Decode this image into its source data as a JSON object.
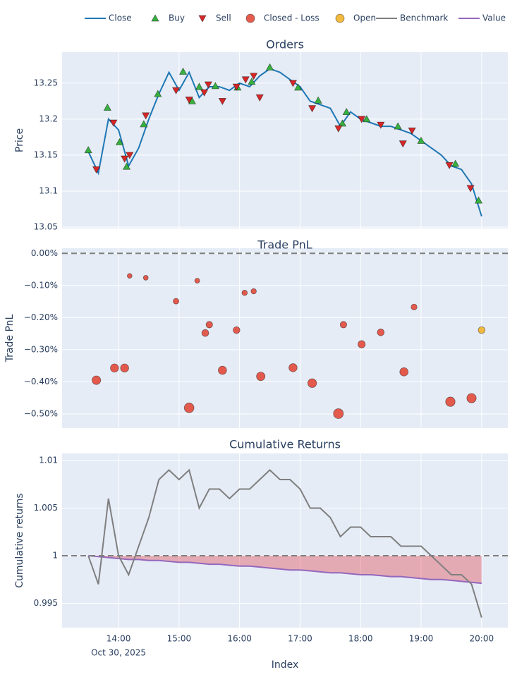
{
  "chart_data": [
    {
      "type": "line",
      "title": "Orders",
      "y_label": "Price",
      "x": [
        "2025-10-30 13:30",
        "2025-10-30 13:40",
        "2025-10-30 13:50",
        "2025-10-30 14:00",
        "2025-10-30 14:10",
        "2025-10-30 14:20",
        "2025-10-30 14:30",
        "2025-10-30 14:40",
        "2025-10-30 14:50",
        "2025-10-30 15:00",
        "2025-10-30 15:10",
        "2025-10-30 15:20",
        "2025-10-30 15:30",
        "2025-10-30 15:40",
        "2025-10-30 15:50",
        "2025-10-30 16:00",
        "2025-10-30 16:10",
        "2025-10-30 16:20",
        "2025-10-30 16:30",
        "2025-10-30 16:40",
        "2025-10-30 16:50",
        "2025-10-30 17:00",
        "2025-10-30 17:10",
        "2025-10-30 17:20",
        "2025-10-30 17:30",
        "2025-10-30 17:40",
        "2025-10-30 17:50",
        "2025-10-30 18:00",
        "2025-10-30 18:10",
        "2025-10-30 18:20",
        "2025-10-30 18:30",
        "2025-10-30 18:40",
        "2025-10-30 18:50",
        "2025-10-30 19:00",
        "2025-10-30 19:10",
        "2025-10-30 19:20",
        "2025-10-30 19:30",
        "2025-10-30 19:40",
        "2025-10-30 19:50",
        "2025-10-30 20:00"
      ],
      "series": [
        {
          "name": "Close",
          "color": "#1f77b4",
          "values": [
            13.155,
            13.125,
            13.2,
            13.185,
            13.135,
            13.16,
            13.2,
            13.235,
            13.265,
            13.24,
            13.265,
            13.23,
            13.245,
            13.245,
            13.24,
            13.25,
            13.245,
            13.26,
            13.27,
            13.265,
            13.255,
            13.245,
            13.225,
            13.22,
            13.215,
            13.19,
            13.21,
            13.2,
            13.195,
            13.19,
            13.19,
            13.185,
            13.18,
            13.17,
            13.16,
            13.15,
            13.135,
            13.13,
            13.11,
            13.065
          ]
        },
        {
          "name": "Buy",
          "color": "#37b13f",
          "marker": "triangle-up",
          "x": [
            "2025-10-30 13:30",
            "2025-10-30 13:49",
            "2025-10-30 14:01",
            "2025-10-30 14:08",
            "2025-10-30 14:25",
            "2025-10-30 14:39",
            "2025-10-30 15:04",
            "2025-10-30 15:13",
            "2025-10-30 15:20",
            "2025-10-30 15:36",
            "2025-10-30 15:58",
            "2025-10-30 16:12",
            "2025-10-30 16:30",
            "2025-10-30 16:58",
            "2025-10-30 17:18",
            "2025-10-30 17:42",
            "2025-10-30 17:46",
            "2025-10-30 18:06",
            "2025-10-30 18:37",
            "2025-10-30 19:00",
            "2025-10-30 19:34",
            "2025-10-30 19:57"
          ],
          "values": [
            13.157,
            13.216,
            13.168,
            13.134,
            13.193,
            13.235,
            13.266,
            13.225,
            13.245,
            13.246,
            13.244,
            13.252,
            13.272,
            13.244,
            13.226,
            13.194,
            13.21,
            13.2,
            13.19,
            13.17,
            13.138,
            13.087
          ]
        },
        {
          "name": "Sell",
          "color": "#d62728",
          "marker": "triangle-down",
          "x": [
            "2025-10-30 13:38",
            "2025-10-30 13:55",
            "2025-10-30 14:06",
            "2025-10-30 14:11",
            "2025-10-30 14:27",
            "2025-10-30 14:57",
            "2025-10-30 15:10",
            "2025-10-30 15:25",
            "2025-10-30 15:29",
            "2025-10-30 15:43",
            "2025-10-30 15:57",
            "2025-10-30 16:06",
            "2025-10-30 16:14",
            "2025-10-30 16:20",
            "2025-10-30 16:53",
            "2025-10-30 17:12",
            "2025-10-30 17:38",
            "2025-10-30 18:01",
            "2025-10-30 18:20",
            "2025-10-30 18:42",
            "2025-10-30 18:51",
            "2025-10-30 19:28",
            "2025-10-30 19:49"
          ],
          "values": [
            13.13,
            13.195,
            13.145,
            13.15,
            13.205,
            13.24,
            13.227,
            13.237,
            13.248,
            13.225,
            13.245,
            13.255,
            13.26,
            13.23,
            13.25,
            13.215,
            13.187,
            13.2,
            13.192,
            13.166,
            13.184,
            13.136,
            13.104
          ]
        }
      ],
      "ylim": [
        13.048,
        13.293
      ],
      "yticks": [
        13.05,
        13.1,
        13.15,
        13.2,
        13.25
      ],
      "grid": true
    },
    {
      "type": "scatter",
      "title": "Trade PnL",
      "y_label": "Trade PnL",
      "series": [
        {
          "name": "Closed - Loss",
          "color": "#e24a3b",
          "marker": "circle",
          "x": [
            "2025-10-30 13:38",
            "2025-10-30 13:56",
            "2025-10-30 14:06",
            "2025-10-30 14:11",
            "2025-10-30 14:27",
            "2025-10-30 14:57",
            "2025-10-30 15:10",
            "2025-10-30 15:18",
            "2025-10-30 15:26",
            "2025-10-30 15:30",
            "2025-10-30 15:43",
            "2025-10-30 15:57",
            "2025-10-30 16:05",
            "2025-10-30 16:14",
            "2025-10-30 16:21",
            "2025-10-30 16:53",
            "2025-10-30 17:12",
            "2025-10-30 17:38",
            "2025-10-30 17:43",
            "2025-10-30 18:01",
            "2025-10-30 18:20",
            "2025-10-30 18:43",
            "2025-10-30 18:53",
            "2025-10-30 19:29",
            "2025-10-30 19:50"
          ],
          "values": [
            -0.395,
            -0.357,
            -0.357,
            -0.07,
            -0.076,
            -0.149,
            -0.481,
            -0.085,
            -0.248,
            -0.222,
            -0.364,
            -0.239,
            -0.123,
            -0.118,
            -0.383,
            -0.356,
            -0.404,
            -0.499,
            -0.222,
            -0.283,
            -0.246,
            -0.369,
            -0.167,
            -0.462,
            -0.451
          ]
        },
        {
          "name": "Open",
          "color": "#f2b32b",
          "marker": "circle",
          "x": [
            "2025-10-30 20:00"
          ],
          "values": [
            -0.239
          ]
        }
      ],
      "reference_line": 0,
      "ylim": [
        -0.544,
        0.016
      ],
      "yticks": [
        {
          "value": 0,
          "label": "0.00%"
        },
        {
          "value": -0.1,
          "label": "−0.10%"
        },
        {
          "value": -0.2,
          "label": "−0.20%"
        },
        {
          "value": -0.3,
          "label": "−0.30%"
        },
        {
          "value": -0.4,
          "label": "−0.40%"
        },
        {
          "value": -0.5,
          "label": "−0.50%"
        }
      ],
      "grid": true
    },
    {
      "type": "line",
      "title": "Cumulative Returns",
      "y_label": "Cumulative returns",
      "x_label": "Index",
      "x": [
        "2025-10-30 13:30",
        "2025-10-30 13:40",
        "2025-10-30 13:50",
        "2025-10-30 14:00",
        "2025-10-30 14:10",
        "2025-10-30 14:20",
        "2025-10-30 14:30",
        "2025-10-30 14:40",
        "2025-10-30 14:50",
        "2025-10-30 15:00",
        "2025-10-30 15:10",
        "2025-10-30 15:20",
        "2025-10-30 15:30",
        "2025-10-30 15:40",
        "2025-10-30 15:50",
        "2025-10-30 16:00",
        "2025-10-30 16:10",
        "2025-10-30 16:20",
        "2025-10-30 16:30",
        "2025-10-30 16:40",
        "2025-10-30 16:50",
        "2025-10-30 17:00",
        "2025-10-30 17:10",
        "2025-10-30 17:20",
        "2025-10-30 17:30",
        "2025-10-30 17:40",
        "2025-10-30 17:50",
        "2025-10-30 18:00",
        "2025-10-30 18:10",
        "2025-10-30 18:20",
        "2025-10-30 18:30",
        "2025-10-30 18:40",
        "2025-10-30 18:50",
        "2025-10-30 19:00",
        "2025-10-30 19:10",
        "2025-10-30 19:20",
        "2025-10-30 19:30",
        "2025-10-30 19:40",
        "2025-10-30 19:50",
        "2025-10-30 20:00"
      ],
      "series": [
        {
          "name": "Value",
          "color": "#9467bd",
          "fill_color": "#e0303a",
          "values": [
            1.0,
            0.9999,
            0.9998,
            0.9997,
            0.9996,
            0.9996,
            0.9995,
            0.9995,
            0.9994,
            0.9993,
            0.9993,
            0.9992,
            0.9991,
            0.9991,
            0.999,
            0.9989,
            0.9989,
            0.9988,
            0.9987,
            0.9986,
            0.9985,
            0.9985,
            0.9984,
            0.9983,
            0.9982,
            0.9982,
            0.9981,
            0.998,
            0.998,
            0.9979,
            0.9978,
            0.9978,
            0.9977,
            0.9976,
            0.9975,
            0.9975,
            0.9974,
            0.9973,
            0.9972,
            0.9971
          ]
        },
        {
          "name": "Benchmark",
          "color": "#7f7f7f",
          "values": [
            1.0,
            0.997,
            1.006,
            1.0,
            0.998,
            1.001,
            1.004,
            1.008,
            1.009,
            1.008,
            1.009,
            1.005,
            1.007,
            1.007,
            1.006,
            1.007,
            1.007,
            1.008,
            1.009,
            1.008,
            1.008,
            1.007,
            1.005,
            1.005,
            1.004,
            1.002,
            1.003,
            1.003,
            1.002,
            1.002,
            1.002,
            1.001,
            1.001,
            1.001,
            1.0,
            0.999,
            0.998,
            0.998,
            0.997,
            0.9935
          ]
        }
      ],
      "reference_line": 1,
      "ylim": [
        0.99244,
        1.01074
      ],
      "yticks": [
        0.995,
        1,
        1.005,
        1.01
      ],
      "xlim": [
        "2025-10-30 13:04",
        "2025-10-30 20:26"
      ],
      "xticks": [
        {
          "value": "2025-10-30 14:00",
          "label": "14:00"
        },
        {
          "value": "2025-10-30 15:00",
          "label": "15:00"
        },
        {
          "value": "2025-10-30 16:00",
          "label": "16:00"
        },
        {
          "value": "2025-10-30 17:00",
          "label": "17:00"
        },
        {
          "value": "2025-10-30 18:00",
          "label": "18:00"
        },
        {
          "value": "2025-10-30 19:00",
          "label": "19:00"
        },
        {
          "value": "2025-10-30 20:00",
          "label": "20:00"
        }
      ],
      "x_date_label": "Oct 30, 2025",
      "grid": true
    }
  ]
}
